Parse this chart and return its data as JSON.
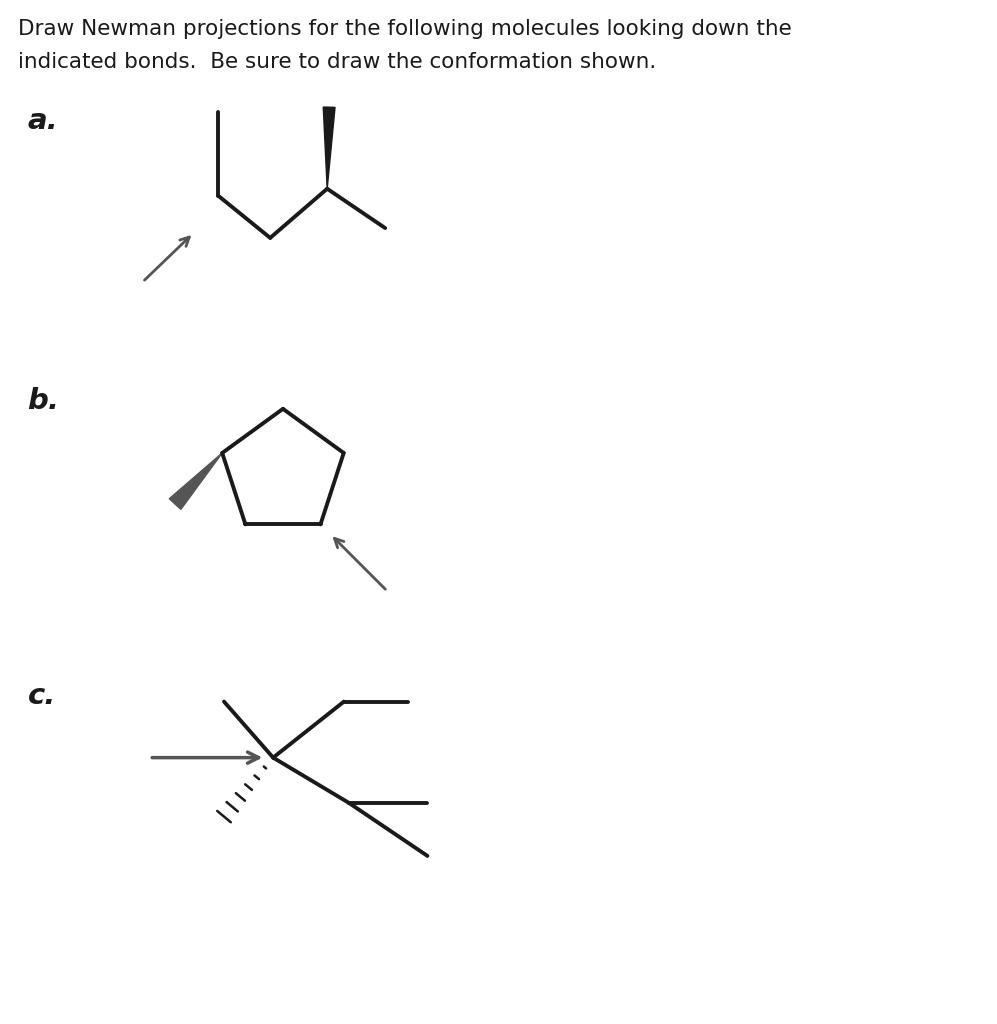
{
  "title_line1": "Draw Newman projections for the following molecules looking down the",
  "title_line2": "indicated bonds.  Be sure to draw the conformation shown.",
  "title_fontsize": 15.5,
  "label_a": "a.",
  "label_b": "b.",
  "label_c": "c.",
  "label_fontsize": 21,
  "bg_color": "#ffffff",
  "line_color": "#1a1a1a",
  "arrow_color": "#555555"
}
